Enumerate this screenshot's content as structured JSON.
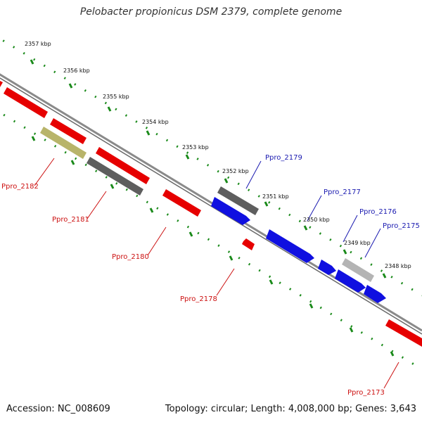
{
  "title": "Pelobacter propionicus DSM 2379, complete genome",
  "footer": {
    "accession": "Accession: NC_008609",
    "stats": "Topology: circular; Length: 4,008,000 bp; Genes: 3,643"
  },
  "colors": {
    "forward_gene": "#1010e0",
    "reverse_gene": "#e60000",
    "dark_gray_gene": "#5e5e5e",
    "light_gray_gene": "#b4b4b4",
    "olive_gene": "#b8b46a",
    "backbone": "#8a8a8a",
    "tick": "#1a8a1a",
    "forward_label": "#1a1ab0",
    "reverse_label": "#cc1010"
  },
  "kbp_ticks": [
    "2357 kbp",
    "2356 kbp",
    "2355 kbp",
    "2354 kbp",
    "2353 kbp",
    "2352 kbp",
    "2351 kbp",
    "2350 kbp",
    "2349 kbp",
    "2348 kbp"
  ],
  "forward_labels": [
    "Ppro_2179",
    "Ppro_2177",
    "Ppro_2176",
    "Ppro_2175"
  ],
  "reverse_labels": [
    "Ppro_2182",
    "Ppro_2181",
    "Ppro_2180",
    "Ppro_2178",
    "Ppro_2173"
  ]
}
